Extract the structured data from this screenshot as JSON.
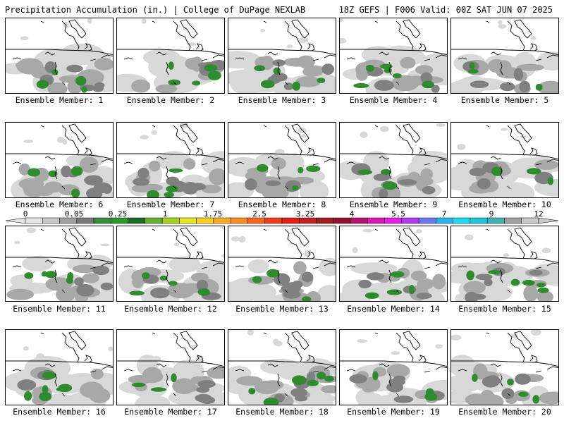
{
  "header": {
    "left": "Precipitation Accumulation (in.) | College of DuPage NEXLAB",
    "right": "18Z GEFS | F006 Valid: 00Z SAT JUN 07 2025"
  },
  "members": [
    {
      "label": "Ensemble Member: 1"
    },
    {
      "label": "Ensemble Member: 2"
    },
    {
      "label": "Ensemble Member: 3"
    },
    {
      "label": "Ensemble Member: 4"
    },
    {
      "label": "Ensemble Member: 5"
    },
    {
      "label": "Ensemble Member: 6"
    },
    {
      "label": "Ensemble Member: 7"
    },
    {
      "label": "Ensemble Member: 8"
    },
    {
      "label": "Ensemble Member: 9"
    },
    {
      "label": "Ensemble Member: 10"
    },
    {
      "label": "Ensemble Member: 11"
    },
    {
      "label": "Ensemble Member: 12"
    },
    {
      "label": "Ensemble Member: 13"
    },
    {
      "label": "Ensemble Member: 14"
    },
    {
      "label": "Ensemble Member: 15"
    },
    {
      "label": "Ensemble Member: 16"
    },
    {
      "label": "Ensemble Member: 17"
    },
    {
      "label": "Ensemble Member: 18"
    },
    {
      "label": "Ensemble Member: 19"
    },
    {
      "label": "Ensemble Member: 20"
    }
  ],
  "colorbar": {
    "labels": [
      "0",
      "0.05",
      "0.25",
      "1",
      "1.75",
      "2.5",
      "3.25",
      "4",
      "5.5",
      "7",
      "9",
      "12"
    ],
    "colors": [
      "#e6e6e6",
      "#c8c8c8",
      "#a0a0a0",
      "#787878",
      "#3c8c3c",
      "#2a9a2a",
      "#1e6e1e",
      "#66b032",
      "#a8d020",
      "#e6e61e",
      "#ffd21e",
      "#ffaa1e",
      "#ff8c1e",
      "#ff641e",
      "#f03c1e",
      "#e61e1e",
      "#c81e1e",
      "#a01e1e",
      "#8c1432",
      "#b4146e",
      "#dc14b4",
      "#e61ee6",
      "#b43cf0",
      "#6e78f0",
      "#28b4f0",
      "#1edcf0",
      "#1ec8dc",
      "#3cb4b4",
      "#a0a0a0",
      "#c8c8c8"
    ],
    "end_color": "#c8c8c8"
  },
  "precip_colors": {
    "light": "#d8d8d8",
    "mid": "#a8a8a8",
    "dark": "#808080",
    "green": "#2e8b2e"
  }
}
